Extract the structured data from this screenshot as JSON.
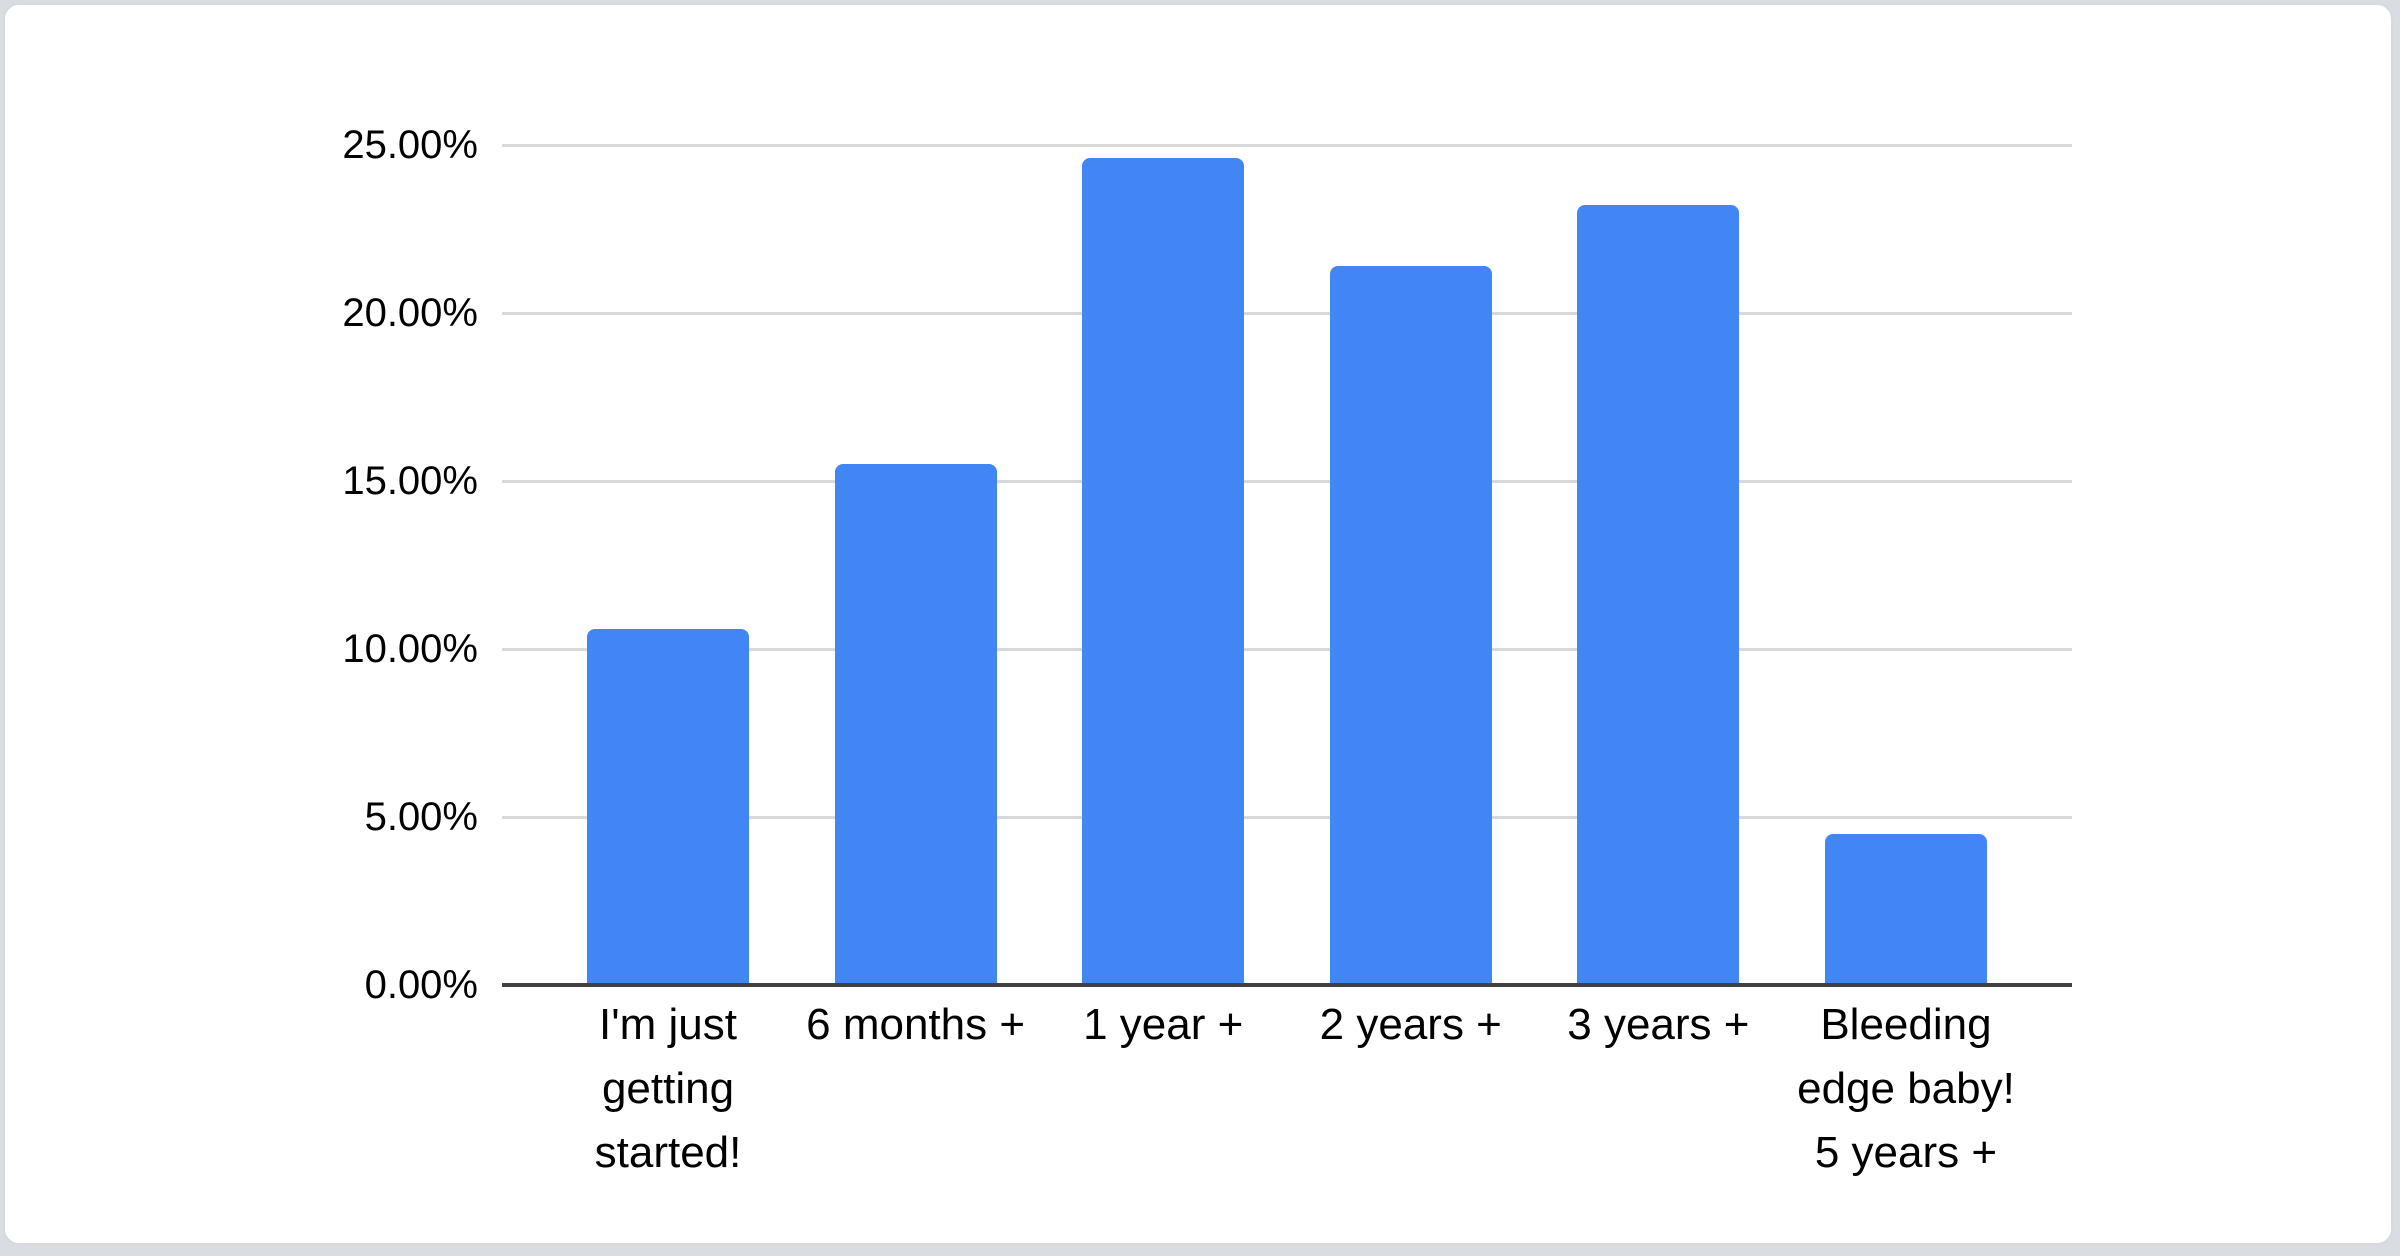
{
  "page": {
    "background_color": "#d9dce0",
    "card_background": "#ffffff",
    "card_border_color": "#d7dadd"
  },
  "chart_data": {
    "type": "bar",
    "title": "",
    "xlabel": "",
    "ylabel": "",
    "categories": [
      "I'm just getting started!",
      "6 months +",
      "1 year +",
      "2 years +",
      "3 years +",
      "Bleeding edge baby! 5 years +"
    ],
    "values": [
      10.6,
      15.5,
      24.6,
      21.4,
      23.2,
      4.5
    ],
    "value_unit": "percent",
    "y_ticks": [
      "0.00%",
      "5.00%",
      "10.00%",
      "15.00%",
      "20.00%",
      "25.00%"
    ],
    "y_tick_values": [
      0,
      5,
      10,
      15,
      20,
      25
    ],
    "ylim": [
      0,
      25
    ],
    "grid": true,
    "legend": "none",
    "bar_color": "#4285f4",
    "gridline_color": "#d9d9d9",
    "axis_line_color": "#424242",
    "label_color": "#000000"
  }
}
